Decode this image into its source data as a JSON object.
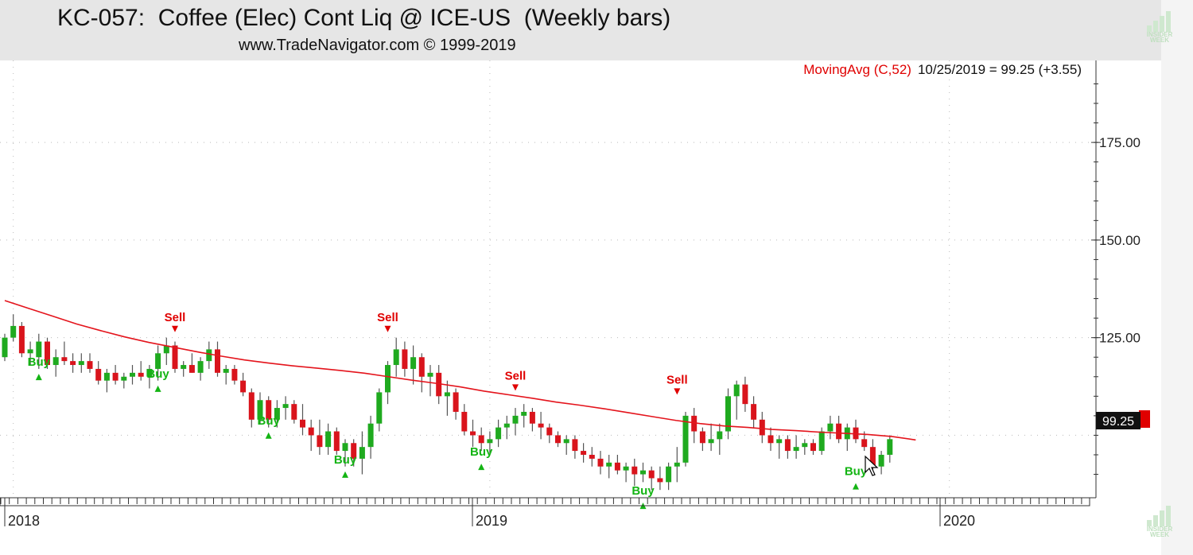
{
  "header": {
    "title": "KC-057:  Coffee (Elec) Cont Liq @ ICE-US  (Weekly bars)",
    "subtitle": "www.TradeNavigator.com © 1999-2019"
  },
  "legend": {
    "indicator": "MovingAvg (C,52)",
    "reading": "10/25/2019 = 99.25 (+3.55)"
  },
  "price_tag": "99.25",
  "logo": {
    "line1": "INSIDER",
    "line2": "WEEK"
  },
  "colors": {
    "up": "#1faa1f",
    "down": "#d9141c",
    "ma": "#e4141c",
    "buy": "#14b414",
    "sell": "#e00000",
    "wick": "#555555"
  },
  "chart_data": {
    "type": "candlestick",
    "title": "KC-057:  Coffee (Elec) Cont Liq @ ICE-US  (Weekly bars)",
    "x_labels": [
      "2018",
      "2019",
      "2020"
    ],
    "y_ticks": [
      "175.00",
      "150.00",
      "125.00"
    ],
    "ylim": [
      84,
      196
    ],
    "grid": true,
    "last_close": 99.25,
    "candles": [
      [
        120,
        126,
        119,
        125
      ],
      [
        125,
        131,
        124,
        128
      ],
      [
        128,
        129,
        120,
        121
      ],
      [
        121,
        124,
        118,
        122
      ],
      [
        120,
        126,
        117,
        124
      ],
      [
        124,
        125,
        117,
        118
      ],
      [
        118,
        122,
        115,
        120
      ],
      [
        120,
        124,
        118,
        119
      ],
      [
        119,
        121,
        116,
        118
      ],
      [
        118,
        121,
        116,
        119
      ],
      [
        119,
        121,
        116,
        117
      ],
      [
        117,
        119,
        113,
        114
      ],
      [
        114,
        117,
        111,
        116
      ],
      [
        116,
        118,
        113,
        114
      ],
      [
        114,
        116,
        112,
        115
      ],
      [
        115,
        118,
        113,
        116
      ],
      [
        116,
        119,
        114,
        115
      ],
      [
        115,
        118,
        112,
        117
      ],
      [
        117,
        123,
        114,
        121
      ],
      [
        121,
        125,
        118,
        123
      ],
      [
        123,
        124,
        116,
        117
      ],
      [
        117,
        119,
        115,
        118
      ],
      [
        118,
        121,
        116,
        116
      ],
      [
        116,
        120,
        114,
        119
      ],
      [
        119,
        124,
        117,
        122
      ],
      [
        122,
        124,
        115,
        116
      ],
      [
        116,
        118,
        113,
        117
      ],
      [
        117,
        118,
        113,
        114
      ],
      [
        114,
        116,
        110,
        111
      ],
      [
        111,
        112,
        102,
        104
      ],
      [
        104,
        111,
        103,
        109
      ],
      [
        109,
        110,
        102,
        104
      ],
      [
        104,
        109,
        102,
        107
      ],
      [
        107,
        110,
        104,
        108
      ],
      [
        108,
        109,
        103,
        104
      ],
      [
        104,
        108,
        100,
        102
      ],
      [
        102,
        104,
        96,
        100
      ],
      [
        100,
        104,
        95,
        97
      ],
      [
        97,
        103,
        95,
        101
      ],
      [
        101,
        102,
        95,
        96
      ],
      [
        96,
        99,
        92,
        98
      ],
      [
        98,
        99,
        92,
        94
      ],
      [
        94,
        101,
        90,
        97
      ],
      [
        97,
        105,
        94,
        103
      ],
      [
        103,
        112,
        101,
        111
      ],
      [
        111,
        119,
        108,
        118
      ],
      [
        118,
        125,
        115,
        122
      ],
      [
        122,
        124,
        115,
        117
      ],
      [
        117,
        123,
        113,
        120
      ],
      [
        120,
        121,
        111,
        115
      ],
      [
        115,
        118,
        110,
        116
      ],
      [
        116,
        118,
        108,
        110
      ],
      [
        110,
        114,
        105,
        111
      ],
      [
        111,
        112,
        104,
        106
      ],
      [
        106,
        108,
        100,
        101
      ],
      [
        101,
        104,
        97,
        100
      ],
      [
        100,
        102,
        96,
        98
      ],
      [
        98,
        101,
        95,
        99
      ],
      [
        99,
        104,
        97,
        102
      ],
      [
        102,
        105,
        99,
        103
      ],
      [
        103,
        107,
        100,
        105
      ],
      [
        105,
        108,
        102,
        106
      ],
      [
        106,
        107,
        101,
        103
      ],
      [
        103,
        106,
        99,
        102
      ],
      [
        102,
        103,
        98,
        100
      ],
      [
        100,
        101,
        97,
        98
      ],
      [
        98,
        100,
        95,
        99
      ],
      [
        99,
        100,
        94,
        96
      ],
      [
        96,
        98,
        93,
        95
      ],
      [
        95,
        97,
        92,
        94
      ],
      [
        94,
        96,
        90,
        92
      ],
      [
        92,
        95,
        89,
        93
      ],
      [
        93,
        95,
        90,
        91
      ],
      [
        91,
        93,
        88,
        92
      ],
      [
        92,
        94,
        87,
        90
      ],
      [
        90,
        93,
        88,
        91
      ],
      [
        91,
        92,
        86,
        89
      ],
      [
        89,
        92,
        86,
        88
      ],
      [
        88,
        93,
        86,
        92
      ],
      [
        92,
        97,
        88,
        93
      ],
      [
        93,
        106,
        92,
        105
      ],
      [
        105,
        107,
        98,
        101
      ],
      [
        101,
        102,
        96,
        98
      ],
      [
        98,
        103,
        96,
        99
      ],
      [
        99,
        103,
        95,
        101
      ],
      [
        101,
        112,
        99,
        110
      ],
      [
        110,
        114,
        104,
        113
      ],
      [
        113,
        115,
        106,
        108
      ],
      [
        108,
        110,
        102,
        104
      ],
      [
        104,
        106,
        98,
        100
      ],
      [
        100,
        102,
        96,
        98
      ],
      [
        98,
        100,
        94,
        99
      ],
      [
        99,
        100,
        94,
        96
      ],
      [
        96,
        100,
        94,
        97
      ],
      [
        97,
        99,
        95,
        98
      ],
      [
        98,
        99,
        95,
        96
      ],
      [
        96,
        102,
        95,
        101
      ],
      [
        101,
        105,
        99,
        103
      ],
      [
        103,
        105,
        98,
        99
      ],
      [
        99,
        103,
        96,
        102
      ],
      [
        102,
        104,
        98,
        99
      ],
      [
        99,
        101,
        96,
        97
      ],
      [
        97,
        99,
        91,
        92
      ],
      [
        92,
        96,
        90,
        95
      ],
      [
        95,
        100,
        93,
        99
      ]
    ],
    "moving_average": [
      [
        0,
        134.5
      ],
      [
        20,
        132.5
      ],
      [
        40,
        130.5
      ],
      [
        60,
        128.5
      ],
      [
        80,
        126.8
      ],
      [
        100,
        125.2
      ],
      [
        120,
        123.8
      ],
      [
        140,
        122.6
      ],
      [
        160,
        121.4
      ],
      [
        180,
        120.3
      ],
      [
        200,
        119.3
      ],
      [
        220,
        118.5
      ],
      [
        240,
        117.8
      ],
      [
        260,
        117.2
      ],
      [
        280,
        116.6
      ],
      [
        300,
        115.9
      ],
      [
        320,
        115
      ],
      [
        340,
        114.1
      ],
      [
        360,
        113.3
      ],
      [
        380,
        112.4
      ],
      [
        400,
        111.3
      ],
      [
        420,
        110.4
      ],
      [
        440,
        109.5
      ],
      [
        460,
        108.5
      ],
      [
        480,
        107.7
      ],
      [
        500,
        106.8
      ],
      [
        520,
        105.8
      ],
      [
        540,
        104.8
      ],
      [
        560,
        103.8
      ],
      [
        580,
        103
      ],
      [
        600,
        102.4
      ],
      [
        620,
        102
      ],
      [
        640,
        101.5
      ],
      [
        660,
        101.2
      ],
      [
        680,
        100.8
      ],
      [
        700,
        100.5
      ],
      [
        720,
        100.2
      ],
      [
        740,
        99.7
      ],
      [
        760,
        98.8
      ]
    ],
    "signals": [
      {
        "label": "Buy",
        "type": "buy",
        "price": 119
      },
      {
        "label": "Buy",
        "type": "buy",
        "price": 116
      },
      {
        "label": "Sell",
        "type": "sell",
        "price": 126
      },
      {
        "label": "Buy",
        "type": "buy",
        "price": 104
      },
      {
        "label": "Buy",
        "type": "buy",
        "price": 94
      },
      {
        "label": "Sell",
        "type": "sell",
        "price": 126
      },
      {
        "label": "Buy",
        "type": "buy",
        "price": 96
      },
      {
        "label": "Sell",
        "type": "sell",
        "price": 111
      },
      {
        "label": "Buy",
        "type": "buy",
        "price": 86
      },
      {
        "label": "Sell",
        "type": "sell",
        "price": 110
      },
      {
        "label": "Buy",
        "type": "buy",
        "price": 91
      }
    ]
  }
}
